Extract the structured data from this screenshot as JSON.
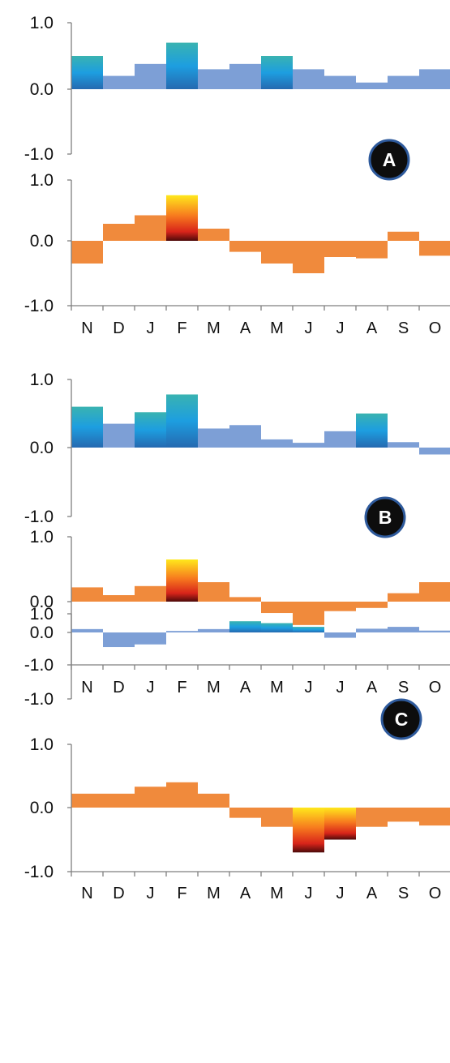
{
  "colors": {
    "blue_bar": "#7d9fd6",
    "orange_bar": "#f08a3c",
    "axis": "#7f7f7f",
    "badge_fill": "#0d0d0d",
    "badge_ring": "#2e5a9c",
    "blue_gradient": [
      "#39b3b1",
      "#1d9ee0",
      "#2569b0"
    ],
    "heat_gradient": [
      "#ffe81c",
      "#f77a1e",
      "#d8241a",
      "#4d0a0a"
    ]
  },
  "chart_data": [
    {
      "type": "bar",
      "panel": "A",
      "categories": [
        "N",
        "D",
        "J",
        "F",
        "M",
        "A",
        "M",
        "J",
        "J",
        "A",
        "S",
        "O"
      ],
      "top": {
        "ylim": [
          -1.0,
          1.0
        ],
        "ticks": [
          "1.0",
          "0.0",
          "-1.0"
        ],
        "values": [
          0.5,
          0.2,
          0.38,
          0.7,
          0.3,
          0.38,
          0.5,
          0.3,
          0.2,
          0.1,
          0.2,
          0.3
        ],
        "highlight": [
          true,
          false,
          false,
          true,
          false,
          false,
          true,
          false,
          false,
          false,
          false,
          false
        ]
      },
      "bottom": {
        "ylim": [
          -1.0,
          1.0
        ],
        "ticks": [
          "1.0",
          "0.0",
          "-1.0"
        ],
        "values": [
          -0.35,
          0.28,
          0.42,
          0.75,
          0.2,
          -0.17,
          -0.35,
          -0.5,
          -0.25,
          -0.27,
          0.15,
          -0.23
        ],
        "highlight": [
          false,
          false,
          false,
          true,
          false,
          false,
          false,
          false,
          false,
          false,
          false,
          false
        ]
      }
    },
    {
      "type": "bar",
      "panel": "B",
      "categories": [
        "N",
        "D",
        "J",
        "F",
        "M",
        "A",
        "M",
        "J",
        "J",
        "A",
        "S",
        "O"
      ],
      "top": {
        "ylim": [
          -1.0,
          1.0
        ],
        "ticks": [
          "1.0",
          "0.0",
          "-1.0"
        ],
        "values": [
          0.6,
          0.35,
          0.52,
          0.78,
          0.28,
          0.33,
          0.12,
          0.07,
          0.24,
          0.5,
          0.08,
          -0.1
        ],
        "highlight": [
          true,
          false,
          true,
          true,
          false,
          false,
          false,
          false,
          false,
          true,
          false,
          false
        ]
      },
      "bottom": {
        "ylim": [
          -1.0,
          1.0
        ],
        "ticks": [
          "1.0",
          "0.0",
          "-1.0"
        ],
        "values": [
          0.22,
          0.1,
          0.24,
          0.65,
          0.3,
          0.07,
          -0.18,
          -0.37,
          -0.15,
          -0.1,
          0.13,
          0.3
        ],
        "highlight": [
          false,
          false,
          false,
          true,
          false,
          false,
          false,
          false,
          false,
          false,
          false,
          false
        ]
      }
    },
    {
      "type": "bar",
      "panel": "C",
      "categories": [
        "N",
        "D",
        "J",
        "F",
        "M",
        "A",
        "M",
        "J",
        "J",
        "A",
        "S",
        "O"
      ],
      "top": {
        "ylim": [
          -1.0,
          1.0
        ],
        "ticks": [
          "1.0",
          "0.0",
          "-1.0"
        ],
        "values": [
          0.18,
          -0.22,
          -0.18,
          0.08,
          0.18,
          0.6,
          0.5,
          0.3,
          -0.08,
          0.2,
          0.3,
          0.1
        ],
        "highlight": [
          false,
          false,
          false,
          false,
          false,
          true,
          true,
          true,
          false,
          false,
          false,
          false
        ]
      },
      "bottom": {
        "ylim": [
          -1.0,
          1.0
        ],
        "ticks": [
          "1.0",
          "0.0",
          "-1.0"
        ],
        "values": [
          0.22,
          0.22,
          0.33,
          0.4,
          0.22,
          -0.16,
          -0.3,
          -0.7,
          -0.5,
          -0.3,
          -0.22,
          -0.28
        ],
        "highlight": [
          false,
          false,
          false,
          false,
          false,
          false,
          false,
          true,
          true,
          false,
          false,
          false
        ]
      }
    }
  ]
}
